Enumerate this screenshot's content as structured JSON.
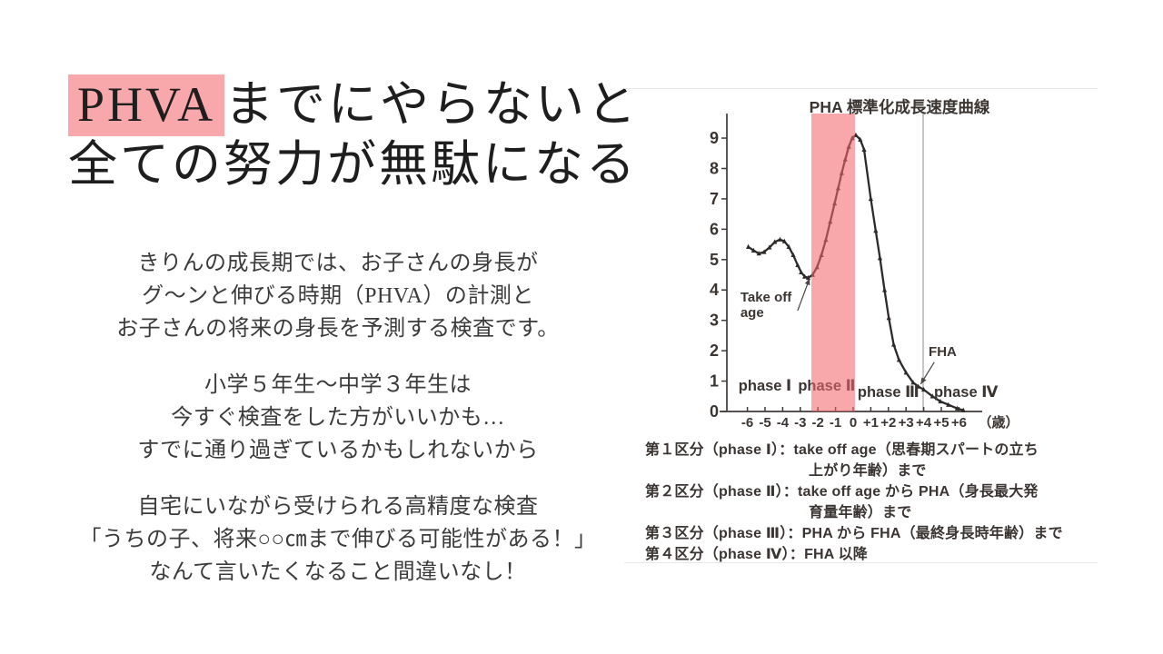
{
  "title": {
    "highlight": "PHVA",
    "line1_rest": "までにやらないと",
    "line2": "全ての努力が無駄になる",
    "highlight_color": "#F8A7AA",
    "text_color": "#1e1e1e"
  },
  "paragraphs": [
    {
      "lines": [
        "きりんの成長期では、お子さんの身長が",
        "グ～ンと伸びる時期（PHVA）の計測と",
        "お子さんの将来の身長を予測する検査です。"
      ]
    },
    {
      "lines": [
        "小学５年生～中学３年生は",
        "今すぐ検査をした方がいいかも…",
        "すでに通り過ぎているかもしれないから"
      ]
    },
    {
      "lines": [
        "自宅にいながら受けられる高精度な検査",
        "「うちの子、将来○○㎝まで伸びる可能性がある！」",
        "なんて言いたくなること間違いなし！"
      ]
    }
  ],
  "chart_data": {
    "type": "line",
    "title": "PHA 標準化成長速度曲線",
    "x_axis_unit": "（歳）",
    "x_ticks": [
      [
        -6,
        "-6"
      ],
      [
        -5,
        "-5"
      ],
      [
        -4,
        "-4"
      ],
      [
        -3,
        "-3"
      ],
      [
        -2,
        "-2"
      ],
      [
        -1,
        "-1"
      ],
      [
        0,
        "0"
      ],
      [
        1,
        "+1"
      ],
      [
        2,
        "+2"
      ],
      [
        3,
        "+3"
      ],
      [
        4,
        "+4"
      ],
      [
        5,
        "+5"
      ],
      [
        6,
        "+6"
      ]
    ],
    "y_ticks": [
      0,
      1,
      2,
      3,
      4,
      5,
      6,
      7,
      8,
      9
    ],
    "xlim": [
      -6.9,
      7.4
    ],
    "ylim": [
      0,
      9.8
    ],
    "line_color": "#2e2a29",
    "axis_color": "#3f3a38",
    "curve_points": [
      [
        -5.95,
        5.42
      ],
      [
        -5.65,
        5.3
      ],
      [
        -5.35,
        5.2
      ],
      [
        -5.05,
        5.25
      ],
      [
        -4.75,
        5.4
      ],
      [
        -4.45,
        5.58
      ],
      [
        -4.15,
        5.66
      ],
      [
        -3.9,
        5.6
      ],
      [
        -3.65,
        5.42
      ],
      [
        -3.4,
        5.15
      ],
      [
        -3.15,
        4.82
      ],
      [
        -2.95,
        4.58
      ],
      [
        -2.75,
        4.44
      ],
      [
        -2.55,
        4.4
      ],
      [
        -2.3,
        4.5
      ],
      [
        -2.05,
        4.75
      ],
      [
        -1.8,
        5.15
      ],
      [
        -1.55,
        5.65
      ],
      [
        -1.3,
        6.25
      ],
      [
        -1.05,
        6.85
      ],
      [
        -0.85,
        7.35
      ],
      [
        -0.65,
        7.85
      ],
      [
        -0.45,
        8.3
      ],
      [
        -0.25,
        8.72
      ],
      [
        -0.05,
        9.0
      ],
      [
        0.15,
        9.1
      ],
      [
        0.4,
        8.95
      ],
      [
        0.62,
        8.62
      ],
      [
        1.0,
        7.0
      ],
      [
        1.28,
        5.95
      ],
      [
        1.52,
        5.05
      ],
      [
        1.78,
        4.0
      ],
      [
        2.02,
        3.08
      ],
      [
        2.3,
        2.2
      ],
      [
        2.6,
        1.7
      ],
      [
        3.0,
        1.28
      ],
      [
        3.4,
        0.95
      ],
      [
        3.7,
        0.82
      ],
      [
        4.0,
        0.72
      ],
      [
        4.5,
        0.5
      ],
      [
        4.95,
        0.33
      ],
      [
        5.4,
        0.22
      ],
      [
        5.9,
        0.1
      ],
      [
        6.25,
        0.04
      ]
    ],
    "highlight_band": {
      "x_from": -2.37,
      "x_to": 0.1,
      "color": "rgba(243,104,110,0.58)"
    },
    "vline": {
      "x": 3.97,
      "color": "#a8a8a8"
    },
    "phase_labels": [
      {
        "text": "phase Ⅰ",
        "x": -5.0,
        "y": 0.69
      },
      {
        "text": "phase Ⅱ",
        "x": -1.5,
        "y": 0.69
      },
      {
        "text": "phase Ⅲ",
        "x": 2.0,
        "y": 0.48
      },
      {
        "text": "phase Ⅳ",
        "x": 6.4,
        "y": 0.48
      }
    ],
    "annotations": [
      {
        "lines": [
          "Take off",
          "age"
        ],
        "x": -6.4,
        "y": 3.62,
        "arrow": [
          [
            -3.15,
            3.32
          ],
          [
            -2.47,
            4.38
          ]
        ]
      },
      {
        "lines": [
          "FHA"
        ],
        "x": 4.28,
        "y": 1.82,
        "arrow": [
          [
            4.6,
            1.62
          ],
          [
            3.83,
            0.9
          ]
        ]
      }
    ]
  },
  "chart_legend": {
    "lines": [
      {
        "text": "第１区分（phase Ⅰ）：take off age（思春期スパートの立ち",
        "indent": false
      },
      {
        "text": "上がり年齢）まで",
        "indent": true
      },
      {
        "text": "第２区分（phase Ⅱ）：take off age から PHA（身長最大発",
        "indent": false
      },
      {
        "text": "育量年齢）まで",
        "indent": true
      },
      {
        "text": "第３区分（phase Ⅲ）：PHA から FHA（最終身長時年齢）まで",
        "indent": false
      },
      {
        "text": "第４区分（phase Ⅳ）：FHA 以降",
        "indent": false
      }
    ]
  }
}
